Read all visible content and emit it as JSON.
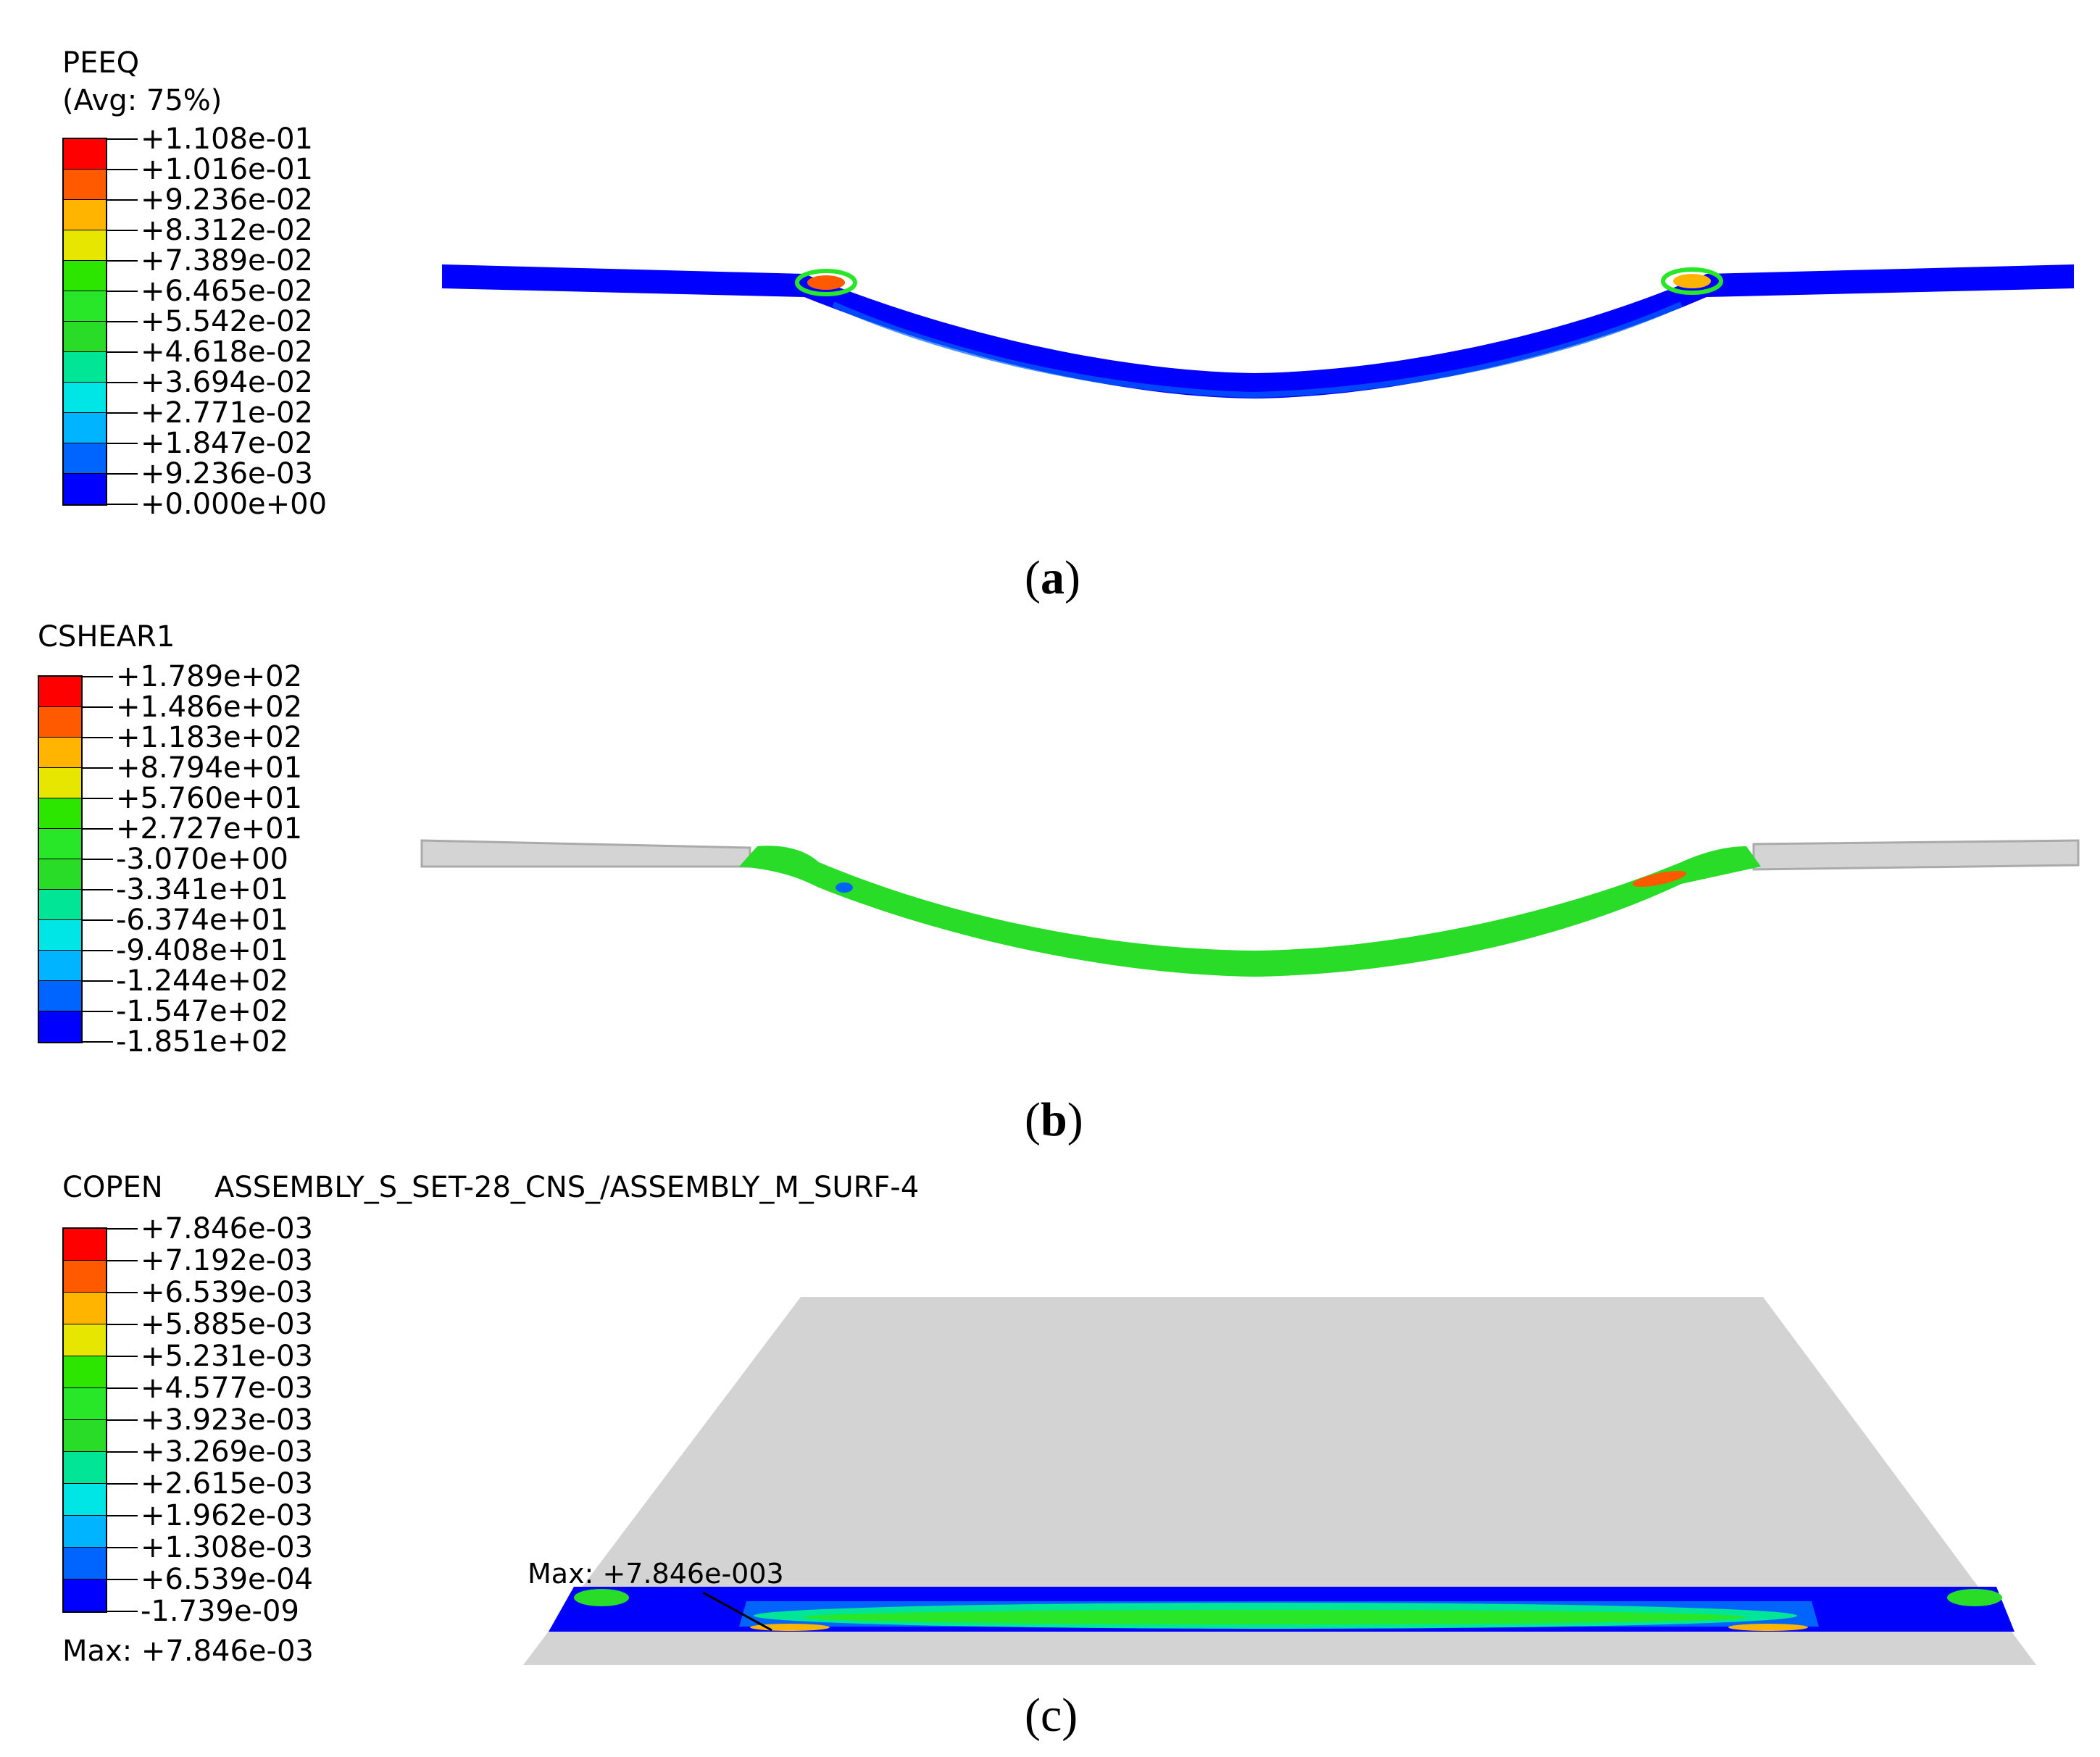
{
  "panels": [
    {
      "id": "a",
      "variable": "PEEQ",
      "averaging": "(Avg: 75%)",
      "legend_values": [
        "+1.108e-01",
        "+1.016e-01",
        "+9.236e-02",
        "+8.312e-02",
        "+7.389e-02",
        "+6.465e-02",
        "+5.542e-02",
        "+4.618e-02",
        "+3.694e-02",
        "+2.771e-02",
        "+1.847e-02",
        "+9.236e-03",
        "+0.000e+00"
      ],
      "caption": "a"
    },
    {
      "id": "b",
      "variable": "CSHEAR1",
      "legend_values": [
        "+1.789e+02",
        "+1.486e+02",
        "+1.183e+02",
        "+8.794e+01",
        "+5.760e+01",
        "+2.727e+01",
        "-3.070e+00",
        "-3.341e+01",
        "-6.374e+01",
        "-9.408e+01",
        "-1.244e+02",
        "-1.547e+02",
        "-1.851e+02"
      ],
      "caption": "b"
    },
    {
      "id": "c",
      "variable": "COPEN",
      "subtitle": "ASSEMBLY_S_SET-28_CNS_/ASSEMBLY_M_SURF-4",
      "legend_values": [
        "+7.846e-03",
        "+7.192e-03",
        "+6.539e-03",
        "+5.885e-03",
        "+5.231e-03",
        "+4.577e-03",
        "+3.923e-03",
        "+3.269e-03",
        "+2.615e-03",
        "+1.962e-03",
        "+1.308e-03",
        "+6.539e-04",
        "-1.739e-09"
      ],
      "legend_max": "Max: +7.846e-03",
      "model_max": "Max: +7.846e-003",
      "caption": "c"
    }
  ],
  "colors": {
    "contour_scale": [
      "#ff0000",
      "#ff5a00",
      "#ffb400",
      "#e6e600",
      "#2de600",
      "#28e628",
      "#28dc28",
      "#00e696",
      "#00e6e6",
      "#00b4ff",
      "#0064ff",
      "#0000ff"
    ],
    "undeformed_gray": "#d4d4d4",
    "plate_gray": "#d3d3d3"
  }
}
